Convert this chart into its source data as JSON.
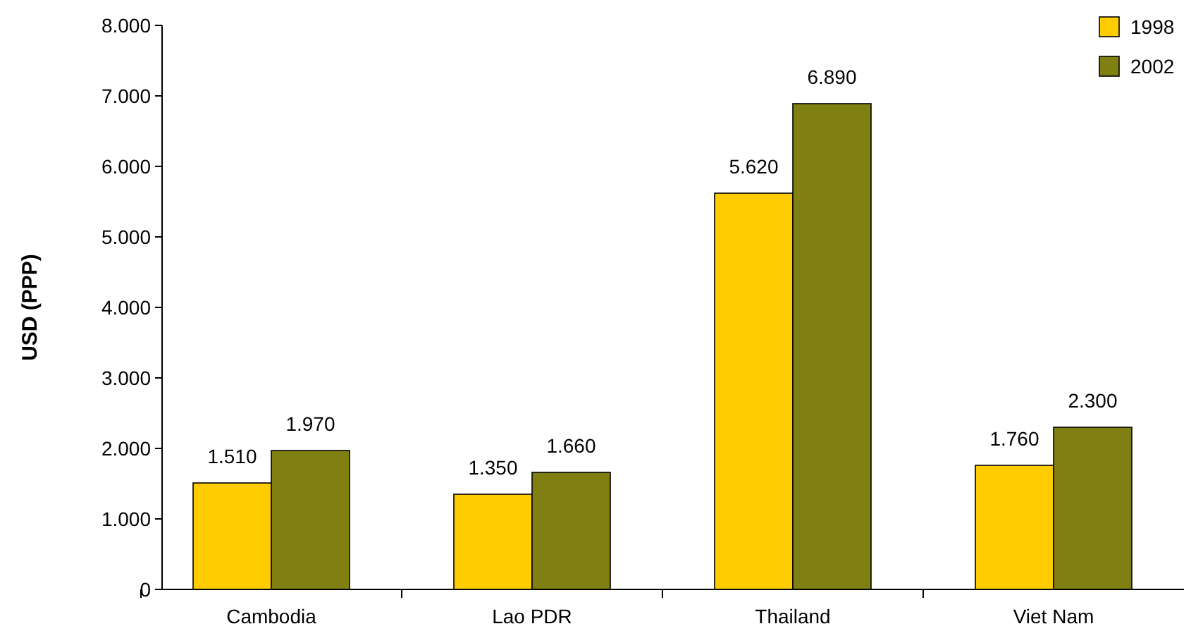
{
  "chart_data": {
    "type": "bar",
    "ylabel": "USD (PPP)",
    "categories": [
      "Cambodia",
      "Lao PDR",
      "Thailand",
      "Viet Nam"
    ],
    "series": [
      {
        "name": "1998",
        "color": "#ffcc00",
        "values": [
          1510,
          1350,
          5620,
          1760
        ],
        "value_labels": [
          "1.510",
          "1.350",
          "5.620",
          "1.760"
        ]
      },
      {
        "name": "2002",
        "color": "#808012",
        "values": [
          1970,
          1660,
          6890,
          2300
        ],
        "value_labels": [
          "1.970",
          "1.660",
          "6.890",
          "2.300"
        ]
      }
    ],
    "ylim": [
      0,
      8000
    ],
    "yticks": [
      0,
      {
        "value": 1000,
        "label": "1.000"
      },
      {
        "value": 2000,
        "label": "2.000"
      },
      {
        "value": 3000,
        "label": "3.000"
      },
      {
        "value": 4000,
        "label": "4.000"
      },
      {
        "value": 5000,
        "label": "5.000"
      },
      {
        "value": 6000,
        "label": "6.000"
      },
      {
        "value": 7000,
        "label": "7.000"
      },
      {
        "value": 8000,
        "label": "8.000"
      }
    ],
    "grid": false,
    "legend": "top right"
  }
}
